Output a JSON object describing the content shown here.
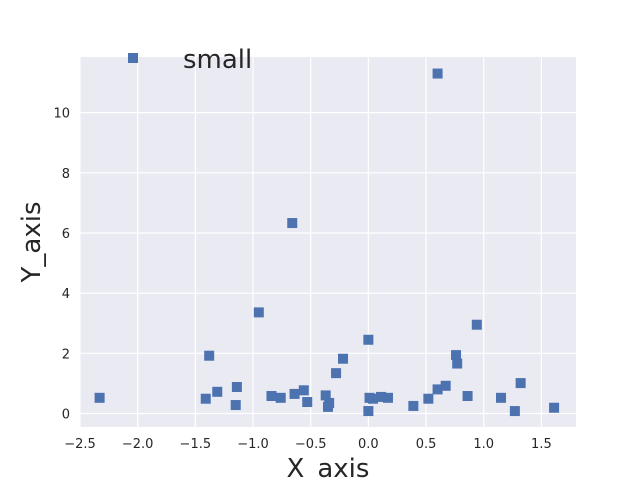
{
  "chart_data": {
    "type": "scatter",
    "title": "",
    "xlabel": "X_axis",
    "ylabel": "Y_axis",
    "xlim": [
      -2.5,
      1.8
    ],
    "ylim": [
      -0.45,
      11.85
    ],
    "xticks": [
      -2.5,
      -2.0,
      -1.5,
      -1.0,
      -0.5,
      0.0,
      0.5,
      1.0,
      1.5
    ],
    "xtick_labels": [
      "−2.5",
      "−2.0",
      "−1.5",
      "−1.0",
      "−0.5",
      "0.0",
      "0.5",
      "1.0",
      "1.5"
    ],
    "yticks": [
      0,
      2,
      4,
      6,
      8,
      10
    ],
    "ytick_labels": [
      "0",
      "2",
      "4",
      "6",
      "8",
      "10"
    ],
    "grid": true,
    "legend_position": "top-left",
    "series": [
      {
        "name": "small",
        "color": "#4c72b0",
        "marker": "square",
        "points": [
          [
            -2.33,
            0.52
          ],
          [
            -1.41,
            0.49
          ],
          [
            -1.38,
            1.92
          ],
          [
            -1.31,
            0.72
          ],
          [
            -1.15,
            0.28
          ],
          [
            -1.14,
            0.88
          ],
          [
            -0.95,
            3.36
          ],
          [
            -0.84,
            0.58
          ],
          [
            -0.76,
            0.52
          ],
          [
            -0.66,
            6.33
          ],
          [
            -0.64,
            0.65
          ],
          [
            -0.56,
            0.77
          ],
          [
            -0.53,
            0.38
          ],
          [
            -0.37,
            0.6
          ],
          [
            -0.35,
            0.22
          ],
          [
            -0.34,
            0.35
          ],
          [
            -0.28,
            1.34
          ],
          [
            -0.22,
            1.82
          ],
          [
            0.0,
            2.45
          ],
          [
            0.0,
            0.08
          ],
          [
            0.01,
            0.52
          ],
          [
            0.04,
            0.49
          ],
          [
            0.11,
            0.55
          ],
          [
            0.17,
            0.52
          ],
          [
            0.39,
            0.25
          ],
          [
            0.52,
            0.49
          ],
          [
            0.6,
            11.3
          ],
          [
            0.6,
            0.8
          ],
          [
            0.67,
            0.92
          ],
          [
            0.76,
            1.94
          ],
          [
            0.77,
            1.66
          ],
          [
            0.86,
            0.58
          ],
          [
            0.94,
            2.95
          ],
          [
            1.15,
            0.52
          ],
          [
            1.27,
            0.08
          ],
          [
            1.32,
            1.01
          ],
          [
            1.61,
            0.19
          ]
        ]
      }
    ]
  }
}
